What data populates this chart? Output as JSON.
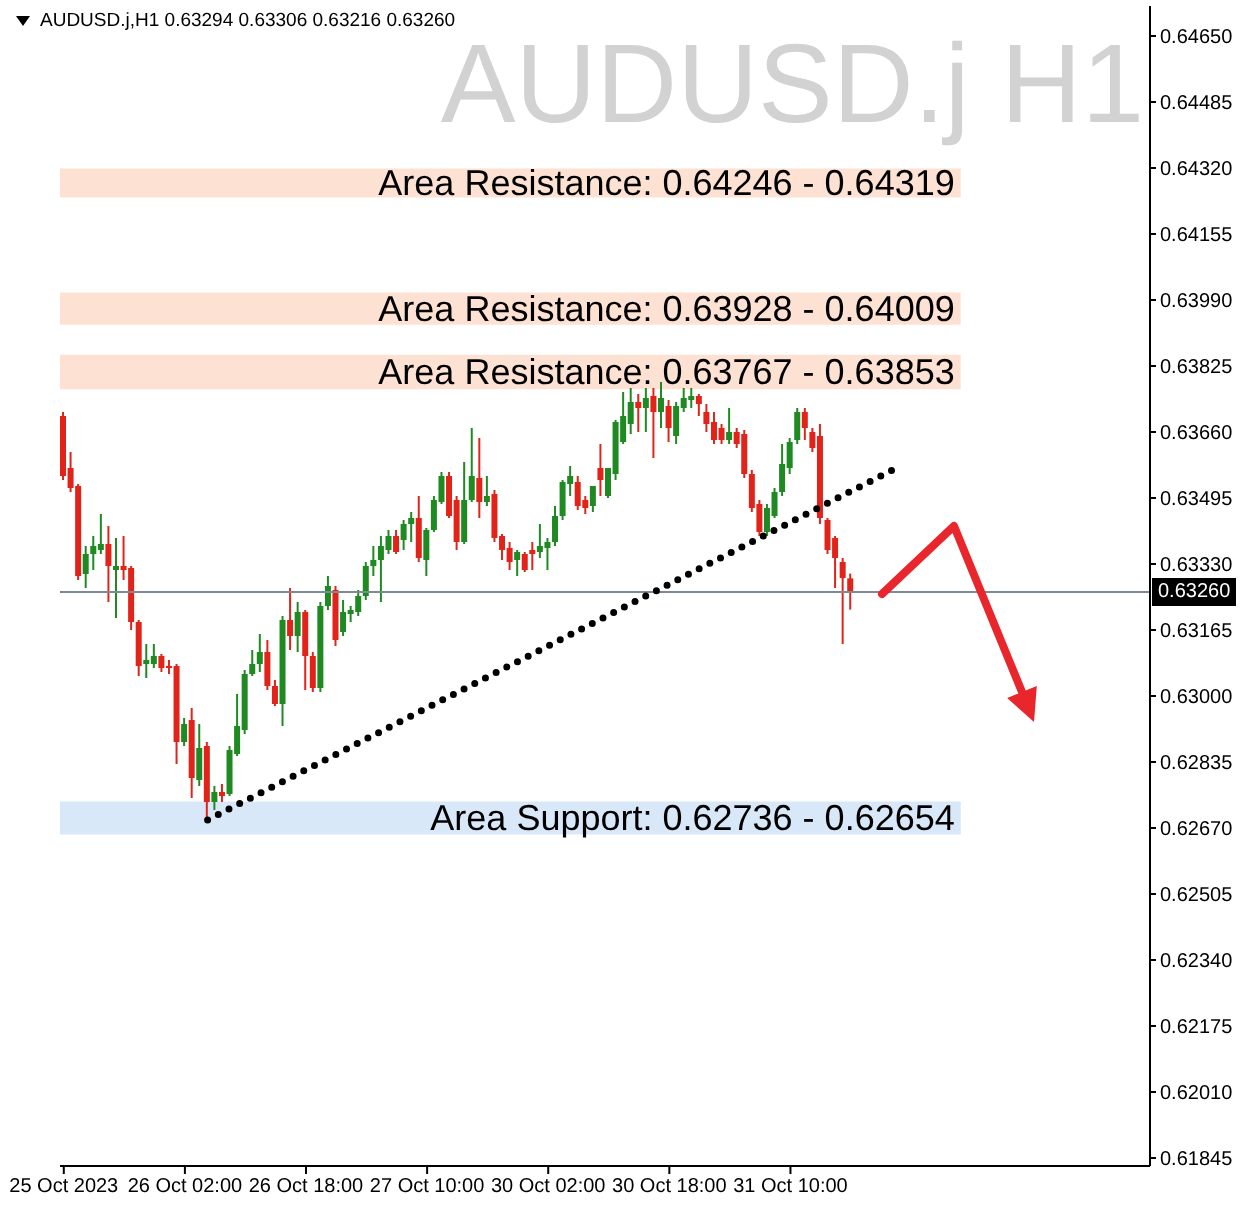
{
  "chart_data": {
    "type": "candlestick",
    "title": "AUDUSD.j H1",
    "subtitle": "AUDUSD.j,H1 0.63294 0.63306 0.63216 0.63260",
    "categories": [
      "25 Oct 2023",
      null,
      null,
      null,
      null,
      null,
      null,
      null,
      null,
      null,
      null,
      null,
      null,
      null,
      null,
      null,
      "26 Oct 02:00",
      null,
      null,
      null,
      null,
      null,
      null,
      null,
      null,
      null,
      null,
      null,
      null,
      null,
      null,
      null,
      "26 Oct 18:00",
      null,
      null,
      null,
      null,
      null,
      null,
      null,
      null,
      null,
      null,
      null,
      null,
      null,
      null,
      null,
      "27 Oct 10:00",
      null,
      null,
      null,
      null,
      null,
      null,
      null,
      null,
      null,
      null,
      null,
      null,
      null,
      null,
      null,
      "30 Oct 02:00",
      null,
      null,
      null,
      null,
      null,
      null,
      null,
      null,
      null,
      null,
      null,
      null,
      null,
      null,
      null,
      "30 Oct 18:00",
      null,
      null,
      null,
      null,
      null,
      null,
      null,
      null,
      null,
      null,
      null,
      null,
      null,
      null,
      null,
      "31 Oct 10:00",
      null,
      null,
      null,
      null,
      null,
      null,
      null,
      null,
      null,
      null,
      null,
      null,
      null,
      null,
      null,
      null,
      null,
      null,
      null,
      null,
      null,
      null,
      null,
      null,
      null,
      null,
      null,
      null,
      null,
      null,
      null,
      null,
      null,
      null,
      null,
      null,
      null,
      null,
      null,
      null,
      null,
      null,
      null,
      null,
      null,
      null,
      null
    ],
    "ohlc": [
      [
        0.637,
        0.6371,
        0.6354,
        0.6355
      ],
      [
        0.6357,
        0.6361,
        0.6351,
        0.6352
      ],
      [
        0.63525,
        0.6353,
        0.6329,
        0.633
      ],
      [
        0.63305,
        0.63375,
        0.6327,
        0.63355
      ],
      [
        0.63355,
        0.634,
        0.63315,
        0.63375
      ],
      [
        0.63365,
        0.63455,
        0.63355,
        0.6338
      ],
      [
        0.6338,
        0.63425,
        0.63235,
        0.63325
      ],
      [
        0.63315,
        0.63395,
        0.63195,
        0.63325
      ],
      [
        0.63325,
        0.634,
        0.6329,
        0.63315
      ],
      [
        0.6332,
        0.63325,
        0.63165,
        0.63185
      ],
      [
        0.63185,
        0.6319,
        0.6305,
        0.63075
      ],
      [
        0.6308,
        0.6313,
        0.63045,
        0.6309
      ],
      [
        0.6308,
        0.6313,
        0.6307,
        0.631
      ],
      [
        0.631,
        0.63105,
        0.6306,
        0.6307
      ],
      [
        0.63075,
        0.6309,
        0.63055,
        0.6307
      ],
      [
        0.63075,
        0.6308,
        0.6283,
        0.62885
      ],
      [
        0.62885,
        0.62945,
        0.62875,
        0.6293
      ],
      [
        0.6294,
        0.6297,
        0.62745,
        0.62795
      ],
      [
        0.6279,
        0.6293,
        0.62775,
        0.6287
      ],
      [
        0.62875,
        0.62885,
        0.62695,
        0.62735
      ],
      [
        0.62735,
        0.62775,
        0.62715,
        0.6276
      ],
      [
        0.6276,
        0.6278,
        0.62735,
        0.6275
      ],
      [
        0.62755,
        0.62875,
        0.6275,
        0.62865
      ],
      [
        0.62855,
        0.63005,
        0.6285,
        0.62925
      ],
      [
        0.62915,
        0.63065,
        0.62905,
        0.63055
      ],
      [
        0.63055,
        0.63115,
        0.6305,
        0.6308
      ],
      [
        0.6308,
        0.63155,
        0.6306,
        0.6311
      ],
      [
        0.6311,
        0.6314,
        0.63015,
        0.63025
      ],
      [
        0.63025,
        0.6304,
        0.62975,
        0.6298
      ],
      [
        0.6298,
        0.632,
        0.62925,
        0.6319
      ],
      [
        0.6319,
        0.6327,
        0.63115,
        0.6315
      ],
      [
        0.6315,
        0.63235,
        0.6311,
        0.6321
      ],
      [
        0.6321,
        0.63215,
        0.63015,
        0.631
      ],
      [
        0.631,
        0.6311,
        0.6301,
        0.6302
      ],
      [
        0.6302,
        0.63235,
        0.6301,
        0.63225
      ],
      [
        0.63225,
        0.633,
        0.63215,
        0.63275
      ],
      [
        0.63265,
        0.63275,
        0.63125,
        0.6314
      ],
      [
        0.6316,
        0.6324,
        0.6315,
        0.6321
      ],
      [
        0.63205,
        0.63225,
        0.63185,
        0.63215
      ],
      [
        0.6321,
        0.63265,
        0.632,
        0.6325
      ],
      [
        0.6325,
        0.63335,
        0.6324,
        0.63325
      ],
      [
        0.63325,
        0.63375,
        0.633,
        0.6334
      ],
      [
        0.6334,
        0.634,
        0.63235,
        0.63375
      ],
      [
        0.63365,
        0.63415,
        0.63355,
        0.634
      ],
      [
        0.634,
        0.63415,
        0.63355,
        0.6336
      ],
      [
        0.6339,
        0.6344,
        0.63365,
        0.6343
      ],
      [
        0.6343,
        0.6346,
        0.63385,
        0.63445
      ],
      [
        0.63445,
        0.635,
        0.63335,
        0.63345
      ],
      [
        0.6334,
        0.6342,
        0.633,
        0.63415
      ],
      [
        0.63415,
        0.635,
        0.6341,
        0.6349
      ],
      [
        0.63485,
        0.6356,
        0.6348,
        0.6355
      ],
      [
        0.6355,
        0.6356,
        0.63445,
        0.6345
      ],
      [
        0.6349,
        0.635,
        0.63365,
        0.63385
      ],
      [
        0.63385,
        0.63585,
        0.6338,
        0.6349
      ],
      [
        0.6349,
        0.6367,
        0.63485,
        0.6355
      ],
      [
        0.63545,
        0.63645,
        0.63445,
        0.63485
      ],
      [
        0.63485,
        0.6355,
        0.63475,
        0.635
      ],
      [
        0.63505,
        0.63515,
        0.63385,
        0.63395
      ],
      [
        0.634,
        0.63405,
        0.6334,
        0.63365
      ],
      [
        0.6337,
        0.63385,
        0.63315,
        0.63335
      ],
      [
        0.6334,
        0.63365,
        0.633,
        0.6336
      ],
      [
        0.63355,
        0.6336,
        0.6331,
        0.63315
      ],
      [
        0.63365,
        0.63385,
        0.63315,
        0.63355
      ],
      [
        0.6336,
        0.6343,
        0.63345,
        0.63375
      ],
      [
        0.6337,
        0.63395,
        0.63315,
        0.63385
      ],
      [
        0.63385,
        0.63475,
        0.63375,
        0.6345
      ],
      [
        0.6345,
        0.6354,
        0.6344,
        0.63535
      ],
      [
        0.6353,
        0.63575,
        0.635,
        0.6355
      ],
      [
        0.63535,
        0.6355,
        0.63465,
        0.63475
      ],
      [
        0.6349,
        0.635,
        0.63455,
        0.6347
      ],
      [
        0.63475,
        0.63525,
        0.6346,
        0.63525
      ],
      [
        0.6357,
        0.6363,
        0.635,
        0.6354
      ],
      [
        0.635,
        0.6357,
        0.63495,
        0.6357
      ],
      [
        0.63555,
        0.6369,
        0.6354,
        0.63685
      ],
      [
        0.63635,
        0.6376,
        0.6363,
        0.637
      ],
      [
        0.6368,
        0.6377,
        0.63655,
        0.63735
      ],
      [
        0.63735,
        0.63755,
        0.6366,
        0.6372
      ],
      [
        0.6372,
        0.6377,
        0.6366,
        0.63745
      ],
      [
        0.6375,
        0.6377,
        0.63595,
        0.6371
      ],
      [
        0.6371,
        0.63785,
        0.6367,
        0.63745
      ],
      [
        0.63725,
        0.6374,
        0.63635,
        0.6367
      ],
      [
        0.6365,
        0.63735,
        0.6363,
        0.63725
      ],
      [
        0.6372,
        0.6377,
        0.6371,
        0.63745
      ],
      [
        0.6374,
        0.6377,
        0.6372,
        0.6375
      ],
      [
        0.6375,
        0.63755,
        0.637,
        0.6373
      ],
      [
        0.6371,
        0.6373,
        0.6366,
        0.6368
      ],
      [
        0.63685,
        0.6371,
        0.6363,
        0.6364
      ],
      [
        0.6367,
        0.6368,
        0.6363,
        0.6364
      ],
      [
        0.6364,
        0.6372,
        0.6363,
        0.6366
      ],
      [
        0.6366,
        0.6367,
        0.6362,
        0.6363
      ],
      [
        0.63655,
        0.63665,
        0.63545,
        0.63555
      ],
      [
        0.63555,
        0.63565,
        0.6346,
        0.6347
      ],
      [
        0.6348,
        0.6349,
        0.634,
        0.6341
      ],
      [
        0.6341,
        0.6348,
        0.634,
        0.6347
      ],
      [
        0.6345,
        0.6352,
        0.63445,
        0.6351
      ],
      [
        0.6351,
        0.6363,
        0.635,
        0.6358
      ],
      [
        0.6357,
        0.63645,
        0.63555,
        0.63635
      ],
      [
        0.6364,
        0.6372,
        0.6363,
        0.6371
      ],
      [
        0.6371,
        0.6372,
        0.6364,
        0.6367
      ],
      [
        0.6366,
        0.6367,
        0.6361,
        0.6362
      ],
      [
        0.6365,
        0.6368,
        0.6343,
        0.63445
      ],
      [
        0.6344,
        0.63445,
        0.63355,
        0.63365
      ],
      [
        0.63395,
        0.634,
        0.6327,
        0.63345
      ],
      [
        0.63335,
        0.63345,
        0.6313,
        0.63295
      ],
      [
        0.63294,
        0.63306,
        0.63216,
        0.6326
      ],
      null,
      null,
      null,
      null,
      null,
      null,
      null,
      null,
      null,
      null,
      null,
      null,
      null,
      null,
      null,
      null,
      null,
      null,
      null,
      null,
      null,
      null,
      null,
      null,
      null,
      null,
      null,
      null,
      null,
      null,
      null,
      null,
      null,
      null,
      null,
      null,
      null,
      null,
      null
    ],
    "colors": [
      "#e2231a",
      "#e2231a",
      "#e2231a",
      "#1f8a22",
      "#1f8a22",
      "#1f8a22",
      "#e2231a",
      "#1f8a22",
      "#e2231a",
      "#e2231a",
      "#e2231a",
      "#1f8a22",
      "#1f8a22",
      "#e2231a",
      "#e2231a",
      "#e2231a",
      "#1f8a22",
      "#e2231a",
      "#1f8a22",
      "#e2231a",
      "#1f8a22",
      "#e2231a",
      "#1f8a22",
      "#1f8a22",
      "#1f8a22",
      "#1f8a22",
      "#1f8a22",
      "#e2231a",
      "#e2231a",
      "#1f8a22",
      "#e2231a",
      "#1f8a22",
      "#e2231a",
      "#e2231a",
      "#1f8a22",
      "#1f8a22",
      "#e2231a",
      "#1f8a22",
      "#1f8a22",
      "#1f8a22",
      "#1f8a22",
      "#1f8a22",
      "#1f8a22",
      "#1f8a22",
      "#e2231a",
      "#1f8a22",
      "#1f8a22",
      "#e2231a",
      "#1f8a22",
      "#1f8a22",
      "#1f8a22",
      "#e2231a",
      "#e2231a",
      "#1f8a22",
      "#1f8a22",
      "#e2231a",
      "#1f8a22",
      "#e2231a",
      "#e2231a",
      "#e2231a",
      "#1f8a22",
      "#e2231a",
      "#e2231a",
      "#1f8a22",
      "#1f8a22",
      "#1f8a22",
      "#1f8a22",
      "#1f8a22",
      "#e2231a",
      "#e2231a",
      "#1f8a22",
      "#e2231a",
      "#1f8a22",
      "#1f8a22",
      "#1f8a22",
      "#1f8a22",
      "#e2231a",
      "#1f8a22",
      "#e2231a",
      "#1f8a22",
      "#e2231a",
      "#1f8a22",
      "#1f8a22",
      "#1f8a22",
      "#e2231a",
      "#e2231a",
      "#e2231a",
      "#e2231a",
      "#1f8a22",
      "#e2231a",
      "#e2231a",
      "#e2231a",
      "#e2231a",
      "#1f8a22",
      "#1f8a22",
      "#1f8a22",
      "#1f8a22",
      "#1f8a22",
      "#e2231a",
      "#e2231a",
      "#e2231a",
      "#e2231a",
      "#e2231a",
      "#e2231a",
      "#e2231a",
      null,
      null,
      null,
      null,
      null,
      null,
      null,
      null,
      null,
      null,
      null,
      null,
      null,
      null,
      null,
      null,
      null,
      null,
      null,
      null,
      null,
      null,
      null,
      null,
      null,
      null,
      null,
      null,
      null,
      null,
      null,
      null,
      null,
      null,
      null,
      null,
      null,
      null,
      null
    ],
    "series": [
      {
        "type": "line",
        "color": "#000000",
        "line_style": "dotted",
        "values": [
          null,
          null,
          null,
          null,
          null,
          null,
          null,
          null,
          null,
          null,
          null,
          null,
          null,
          null,
          null,
          null,
          null,
          null,
          null,
          0.6269,
          null,
          null,
          null,
          null,
          null,
          null,
          null,
          null,
          null,
          null,
          null,
          null,
          null,
          null,
          null,
          null,
          null,
          null,
          null,
          null,
          null,
          null,
          null,
          null,
          null,
          null,
          null,
          null,
          null,
          null,
          null,
          null,
          null,
          null,
          null,
          null,
          null,
          null,
          null,
          null,
          null,
          null,
          null,
          null,
          null,
          null,
          null,
          null,
          null,
          null,
          null,
          null,
          null,
          null,
          null,
          null,
          null,
          null,
          null,
          null,
          null,
          null,
          null,
          null,
          null,
          null,
          null,
          null,
          null,
          null,
          null,
          null,
          null,
          null,
          null,
          null,
          null,
          null,
          null,
          null,
          null,
          null,
          null,
          null,
          null,
          null,
          null,
          null,
          null,
          null,
          0.6357,
          null,
          null,
          null,
          null,
          null,
          null,
          null,
          null,
          null,
          null,
          null,
          null,
          null,
          null,
          null,
          null,
          null,
          null,
          null,
          null,
          null,
          null,
          null,
          null,
          null,
          null,
          null,
          null,
          null,
          null,
          null,
          null,
          null
        ]
      }
    ],
    "ylim": [
      0.61825,
      0.64725
    ],
    "yticks": [
      {
        "value": 0.6465,
        "label": "0.64650"
      },
      0.64485,
      {
        "value": 0.6432,
        "label": "0.64320"
      },
      0.64155,
      {
        "value": 0.6399,
        "label": "0.63990"
      },
      0.63825,
      {
        "value": 0.6366,
        "label": "0.63660"
      },
      0.63495,
      {
        "value": 0.6333,
        "label": "0.63330"
      },
      0.63165,
      {
        "value": 0.63,
        "label": "0.63000"
      },
      0.62835,
      {
        "value": 0.6267,
        "label": "0.62670"
      },
      0.62505,
      {
        "value": 0.6234,
        "label": "0.62340"
      },
      0.62175,
      {
        "value": 0.6201,
        "label": "0.62010"
      },
      0.61845
    ],
    "ref_lines": [
      {
        "axis": "y",
        "value": 0.6326,
        "label": "0.63260",
        "color": "#7d8a96"
      }
    ],
    "bands": [
      {
        "axis": "y",
        "from": 0.64246,
        "to": 0.64319,
        "label": "Area Resistance: 0.64246 - 0.64319",
        "color": "#fde2d4"
      },
      {
        "axis": "y",
        "from": 0.63928,
        "to": 0.64009,
        "label": "Area Resistance: 0.63928 - 0.64009",
        "color": "#fde2d4"
      },
      {
        "axis": "y",
        "from": 0.63767,
        "to": 0.63853,
        "label": "Area Resistance: 0.63767 - 0.63853",
        "color": "#fde2d4"
      },
      {
        "axis": "y",
        "from": 0.62654,
        "to": 0.62736,
        "label": "Area Support: 0.62736 - 0.62654",
        "color": "#d9e8f8"
      }
    ]
  }
}
